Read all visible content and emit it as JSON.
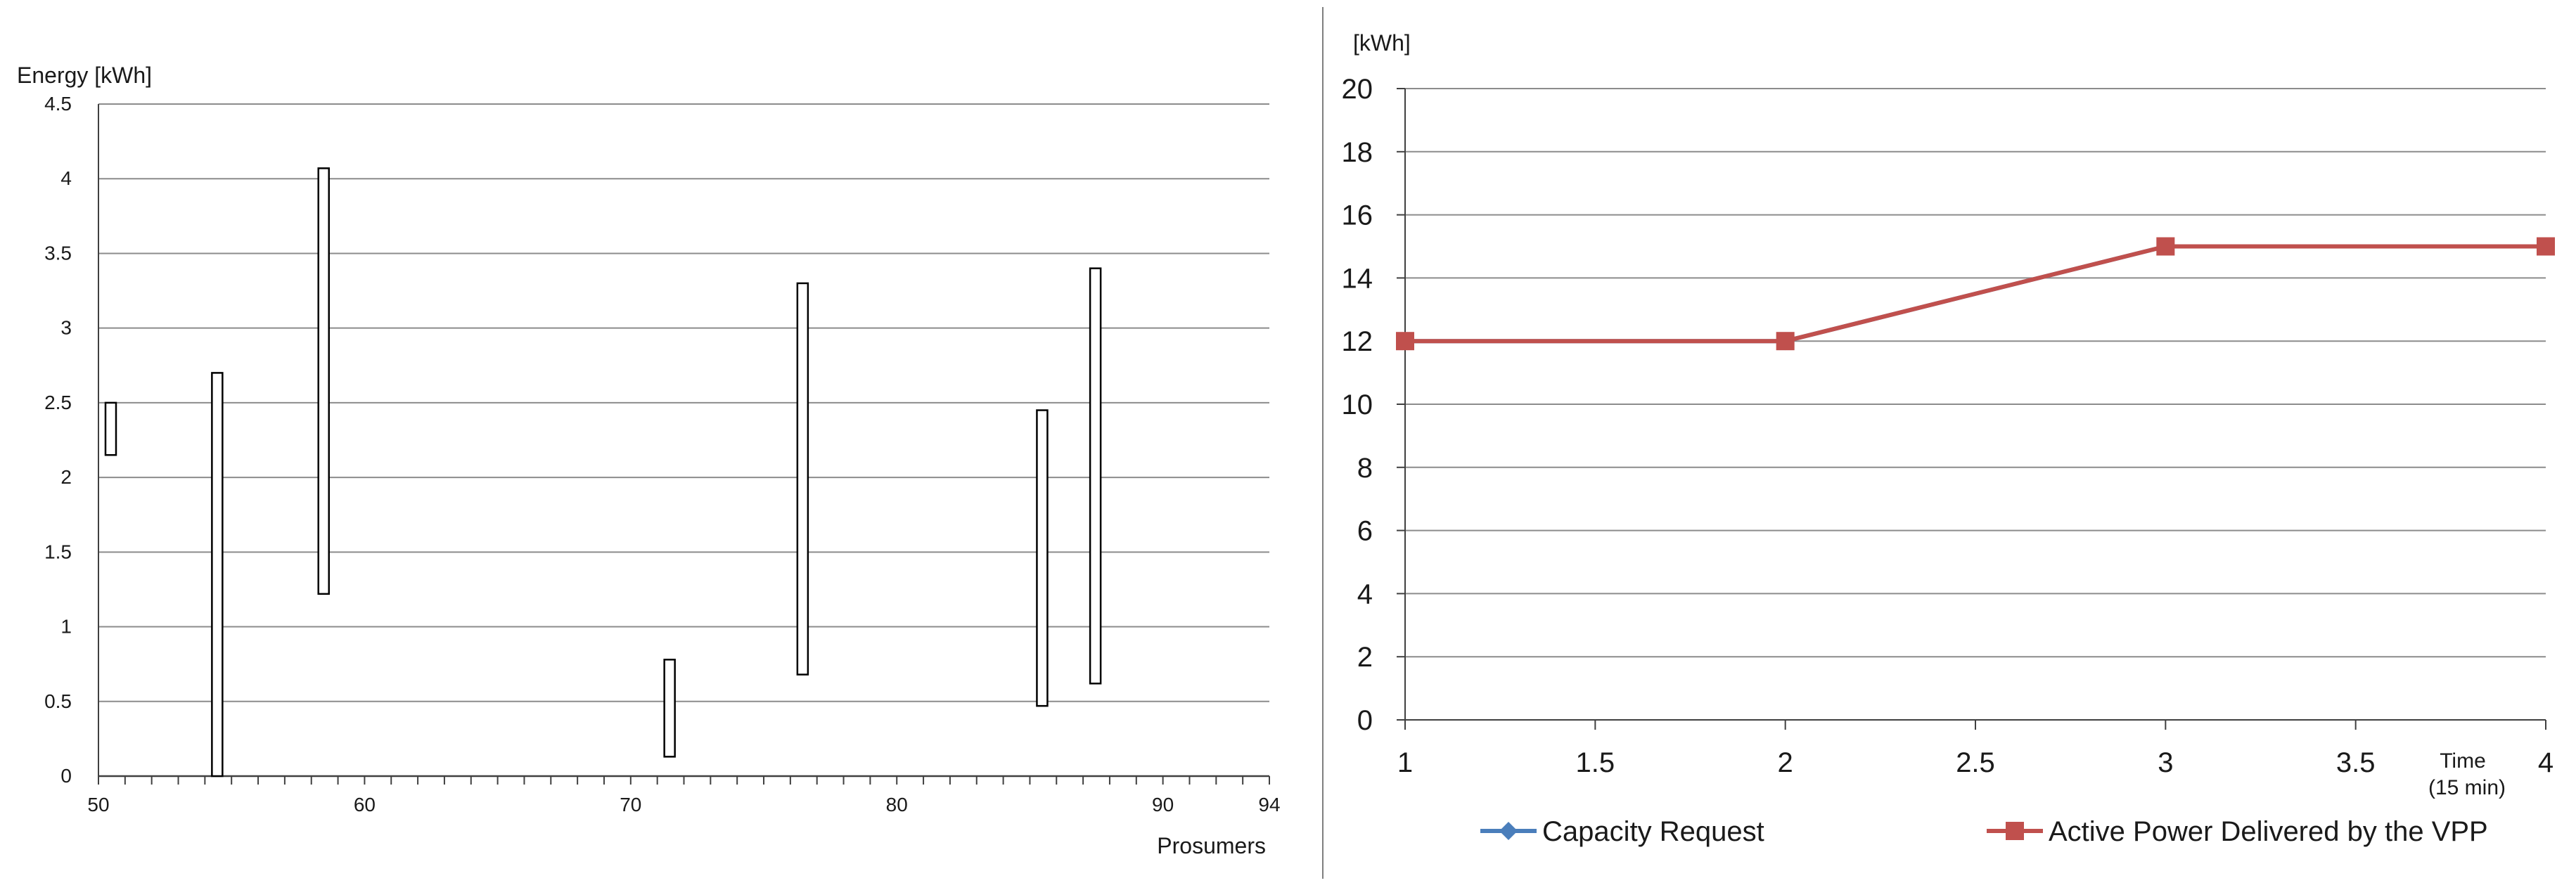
{
  "chart_data": [
    {
      "type": "floating-bar",
      "title": "",
      "ylabel": "Energy [kWh]",
      "xlabel": "Prosumers",
      "ylim": [
        0,
        4.5
      ],
      "y_ticks": [
        "0",
        "0.5",
        "1",
        "1.5",
        "2",
        "2.5",
        "3",
        "3.5",
        "4",
        "4.5"
      ],
      "xlim": [
        50,
        94
      ],
      "x_ticks": [
        "50",
        "60",
        "70",
        "80",
        "90",
        "94"
      ],
      "grid": true,
      "bars": [
        {
          "x": 50,
          "low": 2.15,
          "high": 2.5
        },
        {
          "x": 54,
          "low": 0.0,
          "high": 2.7
        },
        {
          "x": 58,
          "low": 1.22,
          "high": 4.07
        },
        {
          "x": 71,
          "low": 0.13,
          "high": 0.78
        },
        {
          "x": 76,
          "low": 0.68,
          "high": 3.3
        },
        {
          "x": 85,
          "low": 0.47,
          "high": 2.45
        },
        {
          "x": 87,
          "low": 0.62,
          "high": 3.4
        }
      ]
    },
    {
      "type": "line",
      "title": "",
      "ylabel": "[kWh]",
      "xlabel": "Time (15 min)",
      "xlabel_lines": [
        "Time",
        "(15 min)"
      ],
      "ylim": [
        0,
        20
      ],
      "y_ticks": [
        "0",
        "2",
        "4",
        "6",
        "8",
        "10",
        "12",
        "14",
        "16",
        "18",
        "20"
      ],
      "xlim": [
        1,
        4
      ],
      "x_ticks": [
        "1",
        "1.5",
        "2",
        "2.5",
        "3",
        "3.5",
        "4"
      ],
      "grid": true,
      "legend_position": "bottom",
      "x": [
        1,
        2,
        3,
        4
      ],
      "series": [
        {
          "name": "Capacity Request",
          "values": [
            12,
            12,
            15,
            15
          ],
          "color": "#4a7ebb",
          "marker": "diamond"
        },
        {
          "name": "Active Power Delivered by the VPP",
          "values": [
            12,
            12,
            15,
            15
          ],
          "color": "#c0504d",
          "marker": "square"
        }
      ]
    }
  ]
}
